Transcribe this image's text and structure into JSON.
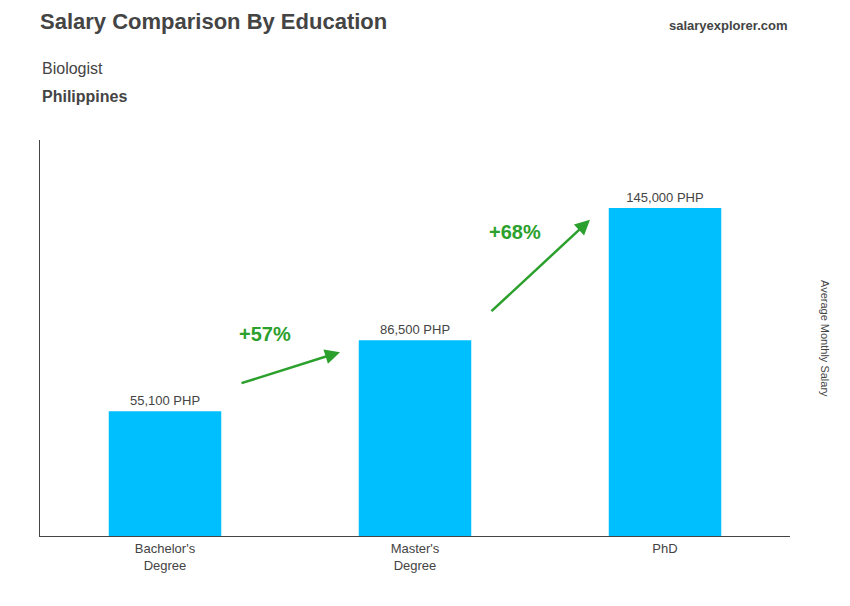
{
  "chart_data": {
    "type": "bar",
    "title": "Salary Comparison By Education",
    "subtitle": "Biologist",
    "country": "Philippines",
    "website": "salaryexplorer.com",
    "ylabel": "Average Monthly Salary",
    "categories": [
      "Bachelor's\nDegree",
      "Master's\nDegree",
      "PhD"
    ],
    "values": [
      55100,
      86500,
      145000
    ],
    "value_labels": [
      "55,100 PHP",
      "86,500 PHP",
      "145,000 PHP"
    ],
    "data_labels": true,
    "annotations": [
      "+57%",
      "+68%"
    ],
    "color": "#00BFFF",
    "ylim": [
      0,
      175000
    ],
    "grid": false,
    "tick_labels": "x"
  }
}
